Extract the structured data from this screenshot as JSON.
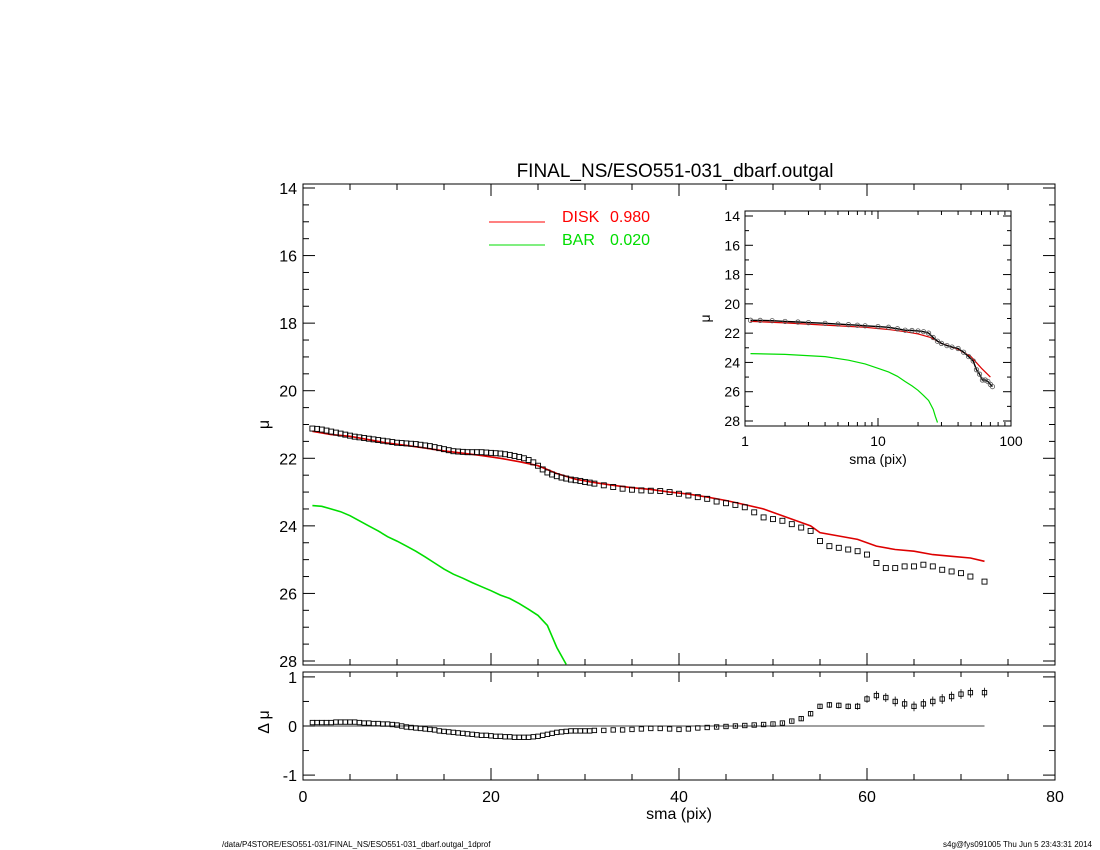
{
  "chart_data": [
    {
      "type": "line",
      "panel": "main",
      "title": "FINAL_NS/ESO551-031_dbarf.outgal",
      "xlabel": "",
      "ylabel": "μ",
      "xlim": [
        0,
        80
      ],
      "ylim": [
        28,
        14
      ],
      "y_inverted": true,
      "xticks": [
        0,
        20,
        40,
        60,
        80
      ],
      "yticks": [
        14,
        16,
        18,
        20,
        22,
        24,
        26,
        28
      ],
      "legend": [
        {
          "label": "DISK",
          "value": "0.980",
          "color": "#ff0000"
        },
        {
          "label": "BAR",
          "value": "0.020",
          "color": "#00dd00"
        }
      ],
      "legend_position": "top-center",
      "series": [
        {
          "name": "DISK 0.980",
          "kind": "line",
          "color": "#dd0000",
          "x": [
            1,
            3,
            5,
            7,
            9,
            11,
            13,
            15,
            17,
            19,
            21,
            23,
            25,
            27,
            29,
            31,
            33,
            35,
            37,
            39,
            41,
            43,
            45,
            47,
            49,
            51,
            53,
            54,
            55,
            57,
            59,
            61,
            63,
            65,
            67,
            69,
            71,
            72.5
          ],
          "y": [
            21.2,
            21.3,
            21.35,
            21.45,
            21.55,
            21.62,
            21.7,
            21.78,
            21.85,
            21.92,
            22.0,
            22.1,
            22.22,
            22.45,
            22.62,
            22.72,
            22.8,
            22.87,
            22.92,
            23.0,
            23.06,
            23.15,
            23.25,
            23.37,
            23.5,
            23.7,
            23.9,
            24.0,
            24.2,
            24.3,
            24.4,
            24.6,
            24.7,
            24.75,
            24.85,
            24.9,
            24.95,
            25.05
          ]
        },
        {
          "name": "BAR 0.020",
          "kind": "line",
          "color": "#00dd00",
          "x": [
            1,
            2,
            3,
            4,
            5,
            6,
            7,
            8,
            9,
            10,
            11,
            12,
            13,
            14,
            15,
            16,
            17,
            18,
            19,
            20,
            21,
            22,
            23,
            24,
            25,
            26,
            27,
            28
          ],
          "y": [
            23.4,
            23.42,
            23.5,
            23.58,
            23.7,
            23.85,
            24.0,
            24.15,
            24.32,
            24.45,
            24.6,
            24.75,
            24.92,
            25.1,
            25.28,
            25.43,
            25.55,
            25.68,
            25.8,
            25.92,
            26.05,
            26.15,
            26.3,
            26.47,
            26.65,
            26.95,
            27.6,
            28.1
          ]
        },
        {
          "name": "observed",
          "kind": "markers",
          "color": "#000000",
          "x": [
            1,
            1.5,
            2,
            2.5,
            3,
            3.5,
            4,
            4.5,
            5,
            5.5,
            6,
            6.5,
            7,
            7.5,
            8,
            8.5,
            9,
            9.5,
            10,
            10.5,
            11,
            11.5,
            12,
            12.5,
            13,
            13.5,
            14,
            14.5,
            15,
            15.5,
            16,
            16.5,
            17,
            17.5,
            18,
            18.5,
            19,
            19.5,
            20,
            20.5,
            21,
            21.5,
            22,
            22.5,
            23,
            23.5,
            24,
            24.5,
            25,
            25.5,
            26,
            26.5,
            27,
            27.5,
            28,
            28.5,
            29,
            29.5,
            30,
            30.5,
            31,
            32,
            33,
            34,
            35,
            36,
            37,
            38,
            39,
            40,
            41,
            42,
            43,
            44,
            45,
            46,
            47,
            48,
            49,
            50,
            51,
            52,
            53,
            54,
            55,
            56,
            57,
            58,
            59,
            60,
            61,
            62,
            63,
            64,
            65,
            66,
            67,
            68,
            69,
            70,
            71,
            72.5
          ],
          "y": [
            21.12,
            21.13,
            21.15,
            21.18,
            21.21,
            21.24,
            21.27,
            21.3,
            21.33,
            21.36,
            21.38,
            21.4,
            21.42,
            21.44,
            21.46,
            21.48,
            21.5,
            21.52,
            21.54,
            21.55,
            21.56,
            21.57,
            21.58,
            21.6,
            21.62,
            21.64,
            21.67,
            21.7,
            21.73,
            21.76,
            21.79,
            21.8,
            21.81,
            21.82,
            21.82,
            21.82,
            21.82,
            21.83,
            21.84,
            21.85,
            21.86,
            21.88,
            21.9,
            21.93,
            21.96,
            22.0,
            22.05,
            22.12,
            22.22,
            22.33,
            22.42,
            22.48,
            22.53,
            22.57,
            22.6,
            22.63,
            22.65,
            22.67,
            22.7,
            22.72,
            22.75,
            22.8,
            22.85,
            22.9,
            22.93,
            22.95,
            22.96,
            22.97,
            23.0,
            23.05,
            23.1,
            23.15,
            23.2,
            23.28,
            23.33,
            23.38,
            23.45,
            23.6,
            23.75,
            23.8,
            23.85,
            23.95,
            24.05,
            24.15,
            24.45,
            24.6,
            24.65,
            24.7,
            24.75,
            24.85,
            25.1,
            25.25,
            25.25,
            25.2,
            25.2,
            25.15,
            25.2,
            25.3,
            25.35,
            25.4,
            25.5,
            25.65
          ]
        }
      ]
    },
    {
      "type": "scatter",
      "panel": "residual",
      "xlabel": "sma (pix)",
      "ylabel": "Δ μ",
      "xlim": [
        0,
        80
      ],
      "ylim": [
        -1.1,
        1.1
      ],
      "xticks": [
        0,
        20,
        40,
        60,
        80
      ],
      "yticks": [
        -1,
        0,
        1
      ],
      "reference_line": 0,
      "series": [
        {
          "name": "residual",
          "kind": "markers_with_errorbars",
          "color": "#000000",
          "x": [
            1,
            1.5,
            2,
            2.5,
            3,
            3.5,
            4,
            4.5,
            5,
            5.5,
            6,
            6.5,
            7,
            7.5,
            8,
            8.5,
            9,
            9.5,
            10,
            10.5,
            11,
            11.5,
            12,
            12.5,
            13,
            13.5,
            14,
            14.5,
            15,
            15.5,
            16,
            16.5,
            17,
            17.5,
            18,
            18.5,
            19,
            19.5,
            20,
            20.5,
            21,
            21.5,
            22,
            22.5,
            23,
            23.5,
            24,
            24.5,
            25,
            25.5,
            26,
            26.5,
            27,
            27.5,
            28,
            28.5,
            29,
            29.5,
            30,
            30.5,
            31,
            32,
            33,
            34,
            35,
            36,
            37,
            38,
            39,
            40,
            41,
            42,
            43,
            44,
            45,
            46,
            47,
            48,
            49,
            50,
            51,
            52,
            53,
            54,
            55,
            56,
            57,
            58,
            59,
            60,
            61,
            62,
            63,
            64,
            65,
            66,
            67,
            68,
            69,
            70,
            71,
            72.5
          ],
          "y": [
            0.07,
            0.07,
            0.07,
            0.07,
            0.07,
            0.08,
            0.08,
            0.08,
            0.08,
            0.08,
            0.07,
            0.06,
            0.06,
            0.05,
            0.05,
            0.04,
            0.04,
            0.03,
            0.02,
            0.0,
            -0.02,
            -0.03,
            -0.04,
            -0.05,
            -0.06,
            -0.07,
            -0.08,
            -0.1,
            -0.11,
            -0.12,
            -0.13,
            -0.14,
            -0.15,
            -0.16,
            -0.17,
            -0.18,
            -0.19,
            -0.19,
            -0.2,
            -0.21,
            -0.21,
            -0.22,
            -0.22,
            -0.23,
            -0.23,
            -0.23,
            -0.23,
            -0.22,
            -0.21,
            -0.19,
            -0.17,
            -0.15,
            -0.13,
            -0.12,
            -0.11,
            -0.1,
            -0.1,
            -0.1,
            -0.1,
            -0.1,
            -0.09,
            -0.09,
            -0.08,
            -0.08,
            -0.07,
            -0.06,
            -0.05,
            -0.05,
            -0.06,
            -0.07,
            -0.06,
            -0.04,
            -0.03,
            -0.02,
            -0.01,
            0.0,
            0.01,
            0.02,
            0.03,
            0.04,
            0.06,
            0.1,
            0.15,
            0.25,
            0.4,
            0.43,
            0.42,
            0.4,
            0.4,
            0.55,
            0.62,
            0.58,
            0.5,
            0.45,
            0.4,
            0.45,
            0.5,
            0.55,
            0.6,
            0.65,
            0.68,
            0.68
          ],
          "error": [
            0.01,
            0.01,
            0.01,
            0.01,
            0.01,
            0.01,
            0.01,
            0.01,
            0.01,
            0.01,
            0.01,
            0.01,
            0.01,
            0.01,
            0.01,
            0.01,
            0.01,
            0.01,
            0.01,
            0.01,
            0.01,
            0.01,
            0.01,
            0.01,
            0.01,
            0.01,
            0.01,
            0.01,
            0.01,
            0.01,
            0.01,
            0.01,
            0.01,
            0.01,
            0.01,
            0.01,
            0.01,
            0.01,
            0.01,
            0.01,
            0.01,
            0.01,
            0.01,
            0.01,
            0.01,
            0.01,
            0.01,
            0.01,
            0.01,
            0.01,
            0.01,
            0.01,
            0.01,
            0.01,
            0.01,
            0.01,
            0.01,
            0.01,
            0.01,
            0.01,
            0.01,
            0.01,
            0.01,
            0.01,
            0.01,
            0.01,
            0.01,
            0.01,
            0.01,
            0.01,
            0.01,
            0.01,
            0.01,
            0.02,
            0.02,
            0.02,
            0.02,
            0.02,
            0.02,
            0.03,
            0.03,
            0.03,
            0.04,
            0.05,
            0.05,
            0.06,
            0.06,
            0.06,
            0.07,
            0.08,
            0.09,
            0.09,
            0.1,
            0.1,
            0.1,
            0.1,
            0.1,
            0.1,
            0.1,
            0.1,
            0.1,
            0.1
          ]
        }
      ]
    },
    {
      "type": "line",
      "panel": "inset",
      "xlabel": "sma (pix)",
      "ylabel": "μ",
      "xscale": "log",
      "xlim": [
        1,
        100
      ],
      "ylim": [
        28,
        14
      ],
      "y_inverted": true,
      "xticks": [
        1,
        10,
        100
      ],
      "yticks": [
        14,
        16,
        18,
        20,
        22,
        24,
        26,
        28
      ],
      "series": [
        {
          "name": "DISK",
          "kind": "line",
          "color": "#dd0000",
          "x": [
            1.1,
            2,
            4,
            8,
            12,
            16,
            20,
            25,
            30,
            40,
            50,
            60,
            70
          ],
          "y": [
            21.2,
            21.3,
            21.45,
            21.6,
            21.75,
            21.9,
            22.05,
            22.3,
            22.7,
            23.1,
            23.6,
            24.4,
            25.0
          ]
        },
        {
          "name": "BAR",
          "kind": "line",
          "color": "#00dd00",
          "x": [
            1.1,
            2,
            4,
            6,
            8,
            10,
            12,
            14,
            16,
            18,
            20,
            22,
            24,
            26,
            27,
            28
          ],
          "y": [
            23.4,
            23.45,
            23.6,
            23.85,
            24.1,
            24.4,
            24.65,
            24.95,
            25.3,
            25.6,
            25.9,
            26.25,
            26.6,
            27.2,
            27.7,
            28.1
          ]
        },
        {
          "name": "observed",
          "kind": "markers",
          "color": "#000000",
          "x": [
            1.1,
            1.3,
            1.6,
            2,
            2.5,
            3,
            4,
            5,
            6,
            7,
            8,
            10,
            12,
            14,
            16,
            18,
            20,
            22,
            24,
            26,
            28,
            30,
            33,
            36,
            40,
            44,
            48,
            52,
            55,
            58,
            61,
            64,
            67,
            70,
            72.5
          ],
          "y": [
            21.12,
            21.13,
            21.15,
            21.2,
            21.24,
            21.28,
            21.33,
            21.38,
            21.42,
            21.46,
            21.5,
            21.55,
            21.6,
            21.7,
            21.8,
            21.82,
            21.85,
            21.9,
            22.0,
            22.3,
            22.55,
            22.7,
            22.85,
            22.95,
            23.05,
            23.3,
            23.6,
            23.9,
            24.5,
            24.8,
            25.2,
            25.2,
            25.3,
            25.5,
            25.65
          ]
        }
      ]
    }
  ],
  "footer": {
    "path": "/data/P4STORE/ESO551-031/FINAL_NS/ESO551-031_dbarf.outgal_1dprof",
    "stamp": "s4g@fys091005  Thu Jun  5 23:43:31 2014"
  }
}
